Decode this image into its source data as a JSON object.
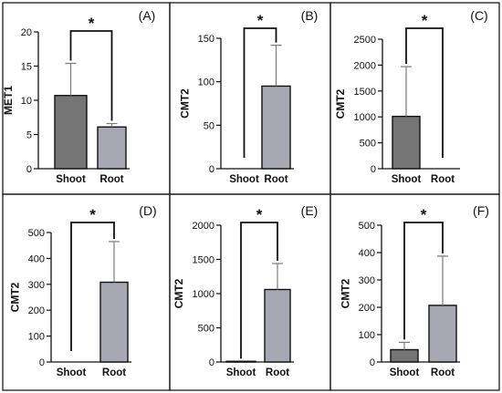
{
  "colors": {
    "shoot_bar": "#757575",
    "root_bar": "#a8a8b2",
    "error_bar": "#7a7a7a"
  },
  "chart_data": [
    {
      "type": "bar",
      "panel_label": "(A)",
      "ylabel": "MET1",
      "categories": [
        "Shoot",
        "Root"
      ],
      "values": [
        10.7,
        6.1
      ],
      "errors": [
        4.7,
        0.5
      ],
      "ylim": [
        0,
        20
      ],
      "yticks": [
        0,
        5,
        10,
        15,
        20
      ],
      "significance": "*"
    },
    {
      "type": "bar",
      "panel_label": "(B)",
      "ylabel": "CMT2",
      "categories": [
        "Shoot",
        "Root"
      ],
      "values": [
        0,
        95
      ],
      "errors": [
        0,
        47
      ],
      "ylim": [
        0,
        150
      ],
      "yticks": [
        0,
        50,
        100,
        150
      ],
      "significance": "*"
    },
    {
      "type": "bar",
      "panel_label": "(C)",
      "ylabel": "CMT2",
      "categories": [
        "Shoot",
        "Root"
      ],
      "values": [
        1010,
        0
      ],
      "errors": [
        960,
        0
      ],
      "ylim": [
        0,
        2500
      ],
      "yticks": [
        0,
        500,
        1000,
        1500,
        2000,
        2500
      ],
      "significance": "*"
    },
    {
      "type": "bar",
      "panel_label": "(D)",
      "ylabel": "CMT2",
      "categories": [
        "Shoot",
        "Root"
      ],
      "values": [
        0,
        308
      ],
      "errors": [
        0,
        157
      ],
      "ylim": [
        0,
        500
      ],
      "yticks": [
        0,
        100,
        200,
        300,
        400,
        500
      ],
      "significance": "*"
    },
    {
      "type": "bar",
      "panel_label": "(E)",
      "ylabel": "CMT2",
      "categories": [
        "Shoot",
        "Root"
      ],
      "values": [
        10,
        1060
      ],
      "errors": [
        0,
        380
      ],
      "ylim": [
        0,
        2000
      ],
      "yticks": [
        0,
        500,
        1000,
        1500,
        2000
      ],
      "significance": "*"
    },
    {
      "type": "bar",
      "panel_label": "(F)",
      "ylabel": "CMT2",
      "categories": [
        "Shoot",
        "Root"
      ],
      "values": [
        45,
        207
      ],
      "errors": [
        27,
        180
      ],
      "ylim": [
        0,
        500
      ],
      "yticks": [
        0,
        100,
        200,
        300,
        400,
        500
      ],
      "significance": "*"
    }
  ]
}
